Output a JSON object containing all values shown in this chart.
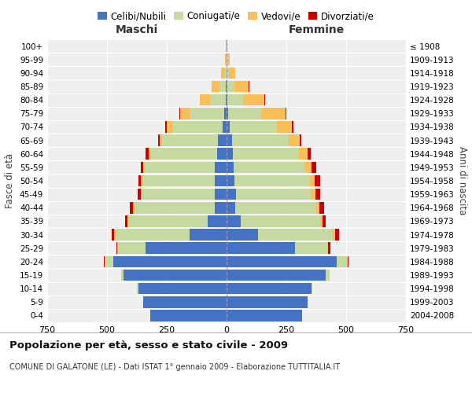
{
  "age_groups": [
    "0-4",
    "5-9",
    "10-14",
    "15-19",
    "20-24",
    "25-29",
    "30-34",
    "35-39",
    "40-44",
    "45-49",
    "50-54",
    "55-59",
    "60-64",
    "65-69",
    "70-74",
    "75-79",
    "80-84",
    "85-89",
    "90-94",
    "95-99",
    "100+"
  ],
  "birth_years": [
    "2004-2008",
    "1999-2003",
    "1994-1998",
    "1989-1993",
    "1984-1988",
    "1979-1983",
    "1974-1978",
    "1969-1973",
    "1964-1968",
    "1959-1963",
    "1954-1958",
    "1949-1953",
    "1944-1948",
    "1939-1943",
    "1934-1938",
    "1929-1933",
    "1924-1928",
    "1919-1923",
    "1914-1918",
    "1909-1913",
    "≤ 1908"
  ],
  "male": {
    "celibi": [
      320,
      350,
      370,
      430,
      475,
      340,
      155,
      80,
      50,
      50,
      48,
      48,
      40,
      35,
      18,
      10,
      4,
      2,
      1,
      1,
      0
    ],
    "coniugati": [
      0,
      0,
      5,
      10,
      35,
      115,
      310,
      330,
      335,
      305,
      305,
      295,
      280,
      235,
      210,
      145,
      65,
      28,
      9,
      2,
      1
    ],
    "vedovi": [
      0,
      0,
      0,
      0,
      0,
      2,
      5,
      5,
      5,
      5,
      5,
      5,
      5,
      10,
      22,
      38,
      42,
      32,
      13,
      3,
      1
    ],
    "divorziati": [
      0,
      0,
      0,
      0,
      2,
      5,
      10,
      10,
      15,
      12,
      12,
      12,
      14,
      6,
      5,
      3,
      2,
      1,
      0,
      0,
      0
    ]
  },
  "female": {
    "nubili": [
      315,
      340,
      355,
      415,
      460,
      285,
      130,
      60,
      35,
      38,
      32,
      28,
      25,
      22,
      12,
      6,
      2,
      1,
      0,
      0,
      0
    ],
    "coniugate": [
      0,
      0,
      5,
      15,
      45,
      135,
      315,
      330,
      340,
      315,
      318,
      298,
      278,
      238,
      200,
      140,
      68,
      32,
      11,
      3,
      1
    ],
    "vedove": [
      0,
      0,
      0,
      0,
      2,
      5,
      10,
      10,
      12,
      18,
      18,
      28,
      35,
      45,
      62,
      100,
      88,
      60,
      25,
      9,
      2
    ],
    "divorziate": [
      0,
      0,
      0,
      2,
      3,
      8,
      14,
      14,
      22,
      22,
      22,
      20,
      14,
      9,
      5,
      3,
      2,
      1,
      0,
      0,
      0
    ]
  },
  "colors": {
    "celibi_nubili": "#4472C4",
    "coniugati": "#C5D9A0",
    "vedovi": "#FABE58",
    "divorziati": "#CC0000"
  },
  "xlim": 750,
  "title": "Popolazione per età, sesso e stato civile - 2009",
  "subtitle": "COMUNE DI GALATONE (LE) - Dati ISTAT 1° gennaio 2009 - Elaborazione TUTTITALIA.IT",
  "xlabel_left": "Maschi",
  "xlabel_right": "Femmine",
  "ylabel_left": "Fasce di età",
  "ylabel_right": "Anni di nascita",
  "bg_color": "#ffffff",
  "plot_bg": "#efefef"
}
